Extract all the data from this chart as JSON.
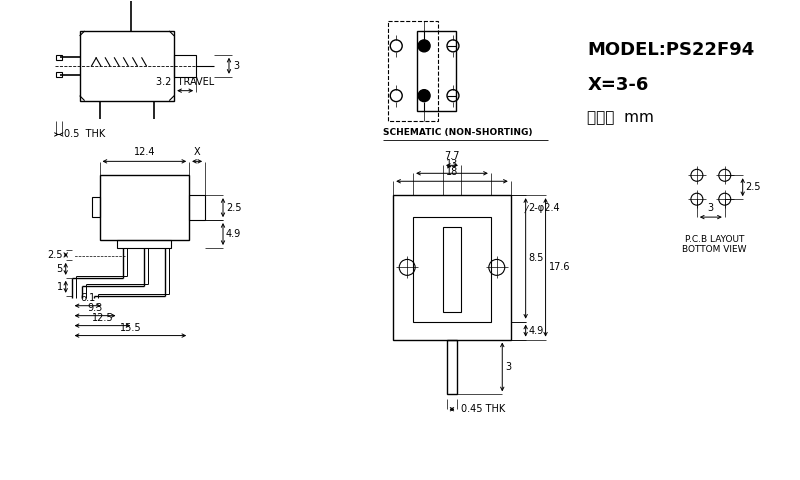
{
  "bg_color": "#ffffff",
  "lc": "#000000",
  "model_text": "MODEL:PS22F94",
  "x_text": "X=3-6",
  "unit_text": "单位：  mm",
  "schematic_label": "SCHEMATIC (NON-SHORTING)",
  "pcb_label": "P.C.B LAYOUT\nBOTTOM VIEW",
  "travel_label": "3.2  TRAVEL",
  "thk_label1": "0.5  THK",
  "thk_label2": "0.45 THK"
}
